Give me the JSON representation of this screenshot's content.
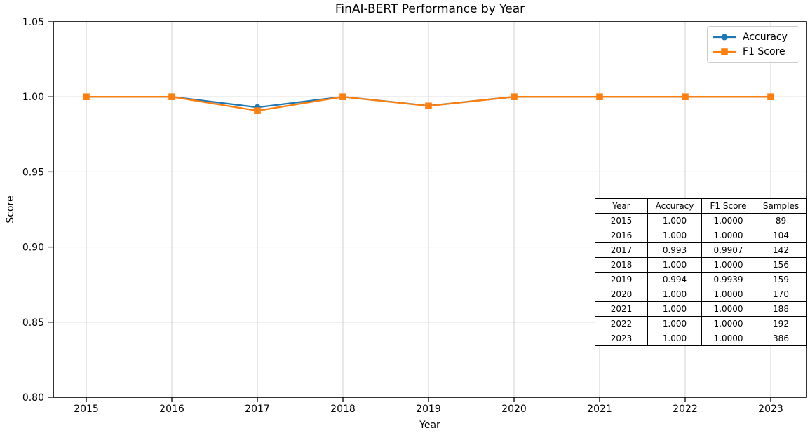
{
  "title": "FinAI-BERT Performance by Year",
  "chart_data": {
    "type": "line",
    "x": [
      2015,
      2016,
      2017,
      2018,
      2019,
      2020,
      2021,
      2022,
      2023
    ],
    "series": [
      {
        "name": "Accuracy",
        "color": "#1f77b4",
        "marker": "circle",
        "values": [
          1.0,
          1.0,
          0.993,
          1.0,
          0.994,
          1.0,
          1.0,
          1.0,
          1.0
        ]
      },
      {
        "name": "F1 Score",
        "color": "#ff7f0e",
        "marker": "square",
        "values": [
          1.0,
          1.0,
          0.9907,
          1.0,
          0.9939,
          1.0,
          1.0,
          1.0,
          1.0
        ]
      }
    ],
    "title": "FinAI-BERT Performance by Year",
    "xlabel": "Year",
    "ylabel": "Score",
    "ylim": [
      0.8,
      1.05
    ],
    "yticks": [
      0.8,
      0.85,
      0.9,
      0.95,
      1.0,
      1.05
    ],
    "grid": true,
    "legend_position": "upper-right"
  },
  "table": {
    "headers": [
      "Year",
      "Accuracy",
      "F1 Score",
      "Samples"
    ],
    "rows": [
      [
        "2015",
        "1.000",
        "1.0000",
        "89"
      ],
      [
        "2016",
        "1.000",
        "1.0000",
        "104"
      ],
      [
        "2017",
        "0.993",
        "0.9907",
        "142"
      ],
      [
        "2018",
        "1.000",
        "1.0000",
        "156"
      ],
      [
        "2019",
        "0.994",
        "0.9939",
        "159"
      ],
      [
        "2020",
        "1.000",
        "1.0000",
        "170"
      ],
      [
        "2021",
        "1.000",
        "1.0000",
        "188"
      ],
      [
        "2022",
        "1.000",
        "1.0000",
        "192"
      ],
      [
        "2023",
        "1.000",
        "1.0000",
        "386"
      ]
    ]
  },
  "colors": {
    "accuracy": "#1f77b4",
    "f1_score": "#ff7f0e",
    "grid": "#d4d4d4",
    "axis": "#000000",
    "legend_border": "#cccccc"
  }
}
